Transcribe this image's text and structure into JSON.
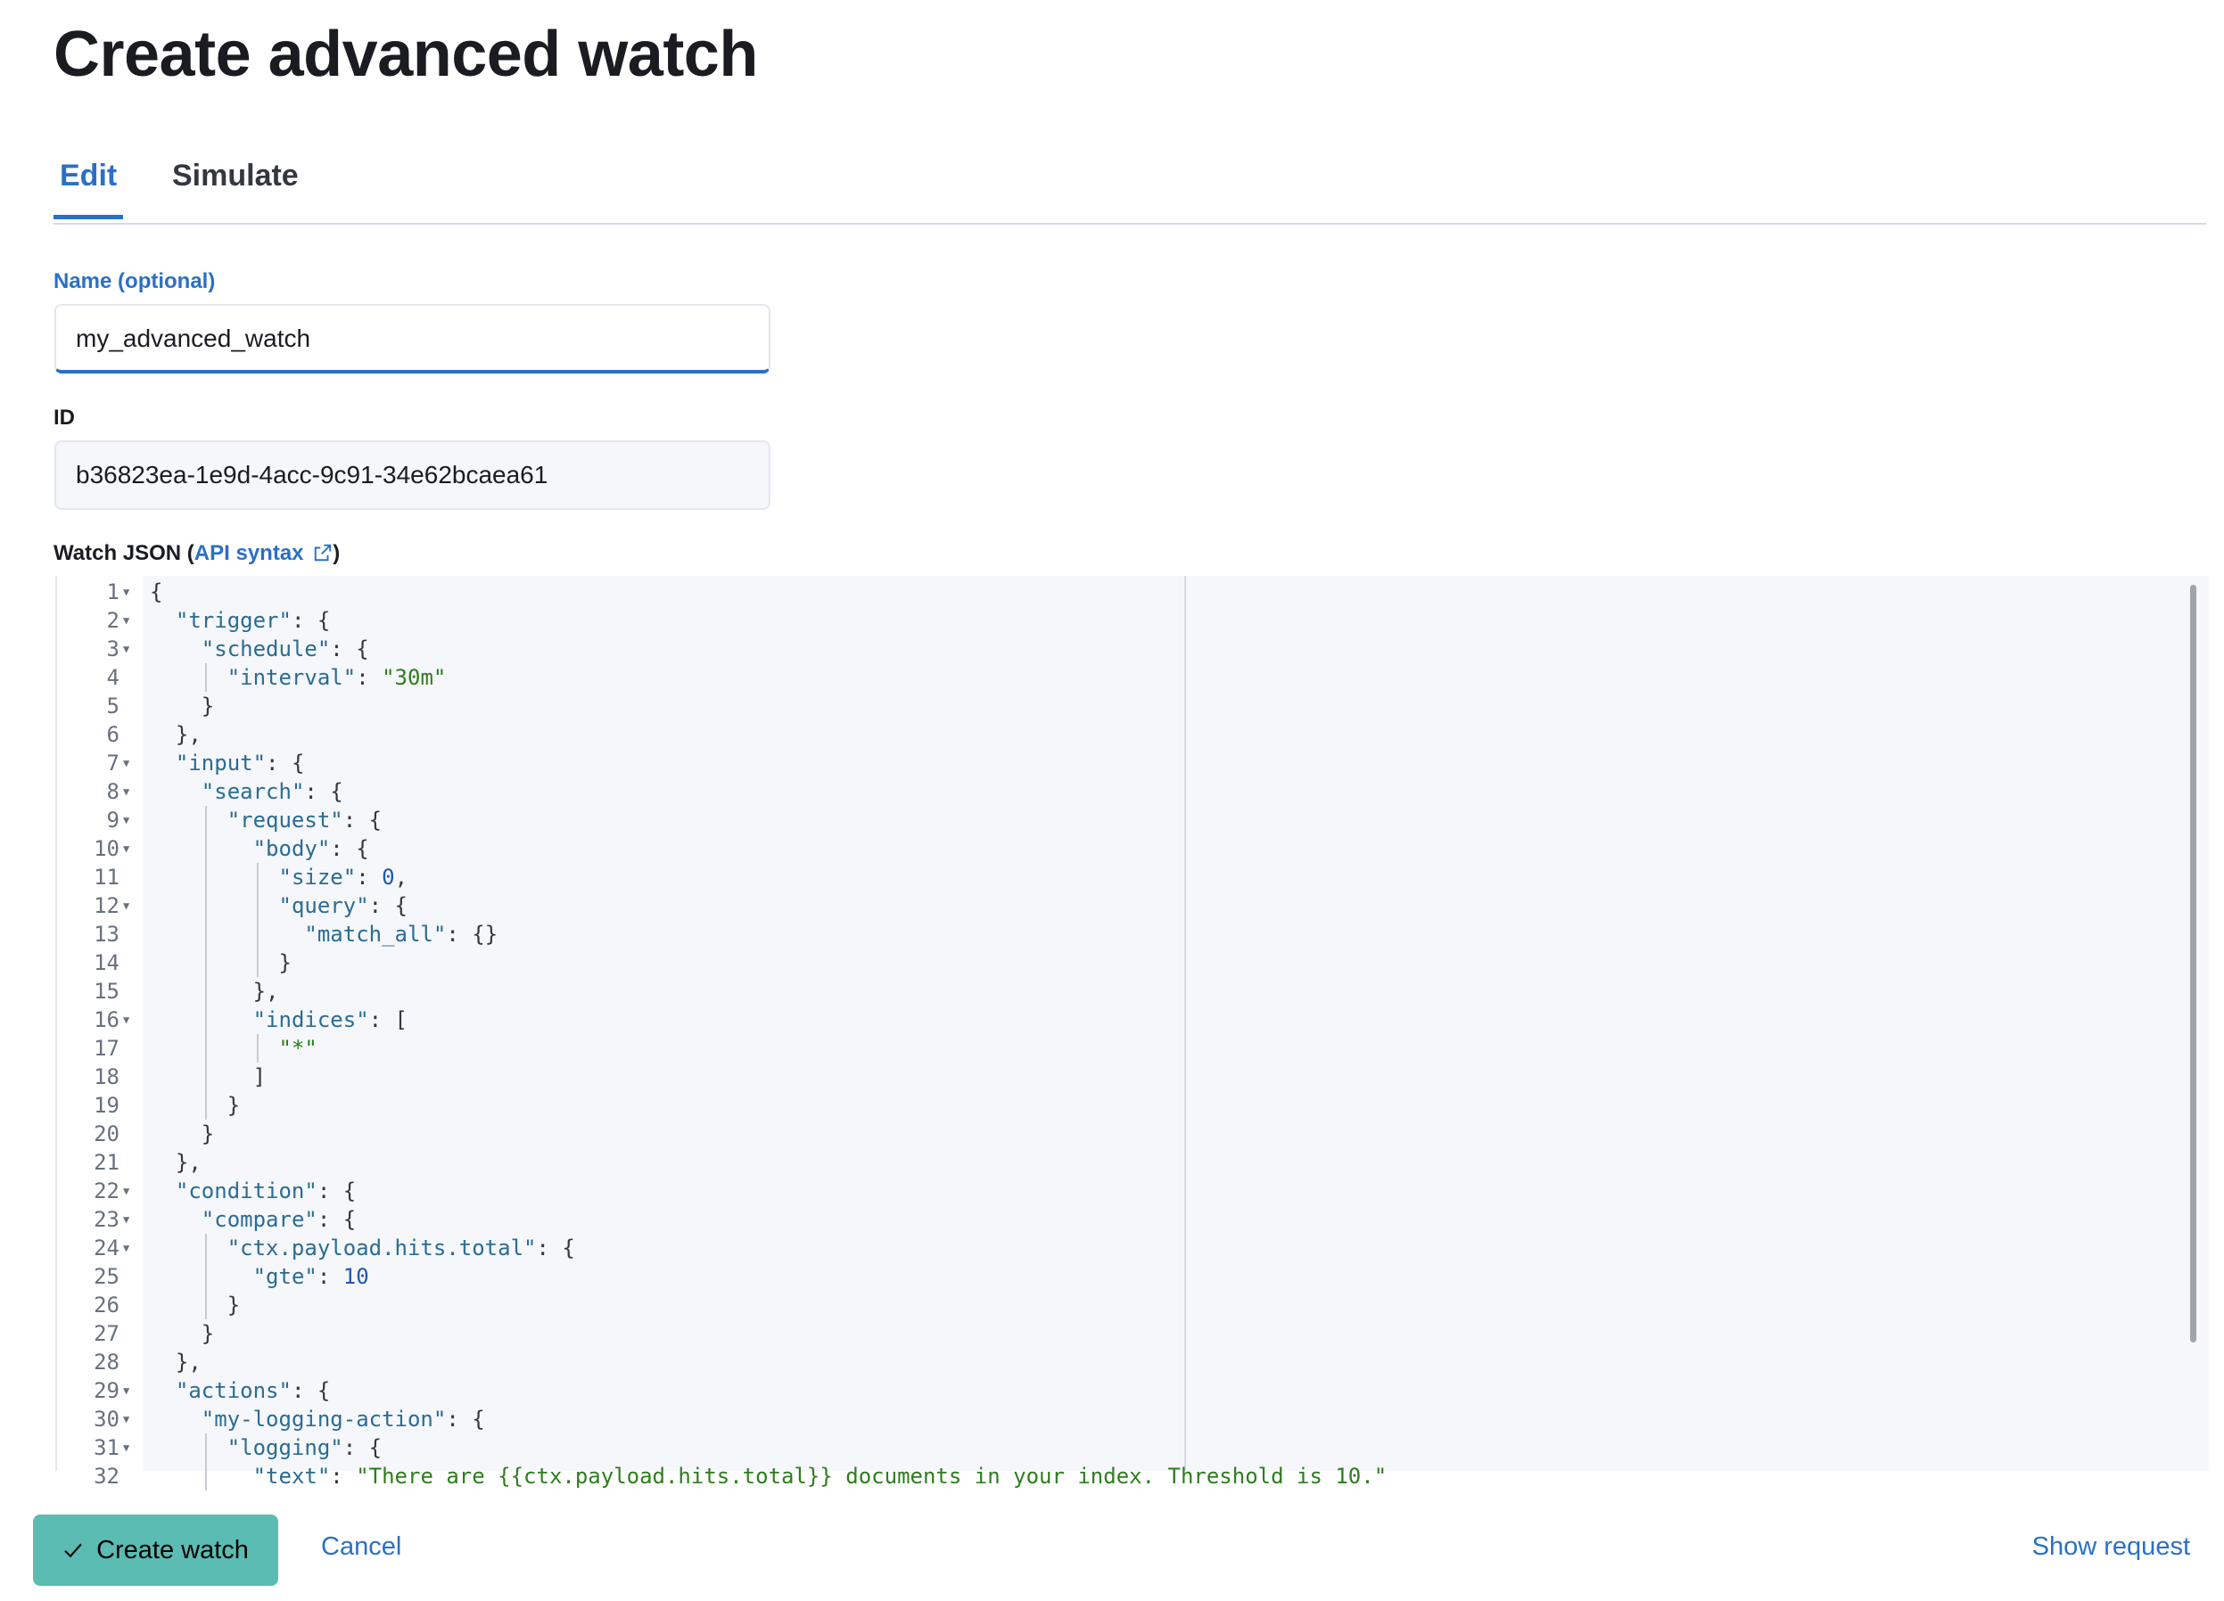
{
  "page": {
    "title": "Create advanced watch"
  },
  "tabs": [
    {
      "label": "Edit",
      "active": true
    },
    {
      "label": "Simulate",
      "active": false
    }
  ],
  "form": {
    "name_label": "Name (optional)",
    "name_value": "my_advanced_watch",
    "id_label": "ID",
    "id_value": "b36823ea-1e9d-4acc-9c91-34e62bcaea61",
    "json_label_prefix": "Watch JSON (",
    "json_label_link": "API syntax",
    "json_label_suffix": ")",
    "external_link_icon": "external-link-icon"
  },
  "editor": {
    "lines": [
      {
        "n": "1",
        "fold": true,
        "indent": 0,
        "t": [
          [
            "p",
            "{"
          ]
        ]
      },
      {
        "n": "2",
        "fold": true,
        "indent": 2,
        "t": [
          [
            "k",
            "\"trigger\""
          ],
          [
            "p",
            ": {"
          ]
        ]
      },
      {
        "n": "3",
        "fold": true,
        "indent": 4,
        "t": [
          [
            "k",
            "\"schedule\""
          ],
          [
            "p",
            ": {"
          ]
        ]
      },
      {
        "n": "4",
        "fold": false,
        "indent": 6,
        "t": [
          [
            "k",
            "\"interval\""
          ],
          [
            "p",
            ": "
          ],
          [
            "s",
            "\"30m\""
          ]
        ]
      },
      {
        "n": "5",
        "fold": false,
        "indent": 4,
        "t": [
          [
            "p",
            "}"
          ]
        ]
      },
      {
        "n": "6",
        "fold": false,
        "indent": 2,
        "t": [
          [
            "p",
            "},"
          ]
        ]
      },
      {
        "n": "7",
        "fold": true,
        "indent": 2,
        "t": [
          [
            "k",
            "\"input\""
          ],
          [
            "p",
            ": {"
          ]
        ]
      },
      {
        "n": "8",
        "fold": true,
        "indent": 4,
        "t": [
          [
            "k",
            "\"search\""
          ],
          [
            "p",
            ": {"
          ]
        ]
      },
      {
        "n": "9",
        "fold": true,
        "indent": 6,
        "t": [
          [
            "k",
            "\"request\""
          ],
          [
            "p",
            ": {"
          ]
        ]
      },
      {
        "n": "10",
        "fold": true,
        "indent": 8,
        "t": [
          [
            "k",
            "\"body\""
          ],
          [
            "p",
            ": {"
          ]
        ]
      },
      {
        "n": "11",
        "fold": false,
        "indent": 10,
        "t": [
          [
            "k",
            "\"size\""
          ],
          [
            "p",
            ": "
          ],
          [
            "nm",
            "0"
          ],
          [
            "p",
            ","
          ]
        ]
      },
      {
        "n": "12",
        "fold": true,
        "indent": 10,
        "t": [
          [
            "k",
            "\"query\""
          ],
          [
            "p",
            ": {"
          ]
        ]
      },
      {
        "n": "13",
        "fold": false,
        "indent": 12,
        "t": [
          [
            "k",
            "\"match_all\""
          ],
          [
            "p",
            ": {}"
          ]
        ]
      },
      {
        "n": "14",
        "fold": false,
        "indent": 10,
        "t": [
          [
            "p",
            "}"
          ]
        ]
      },
      {
        "n": "15",
        "fold": false,
        "indent": 8,
        "t": [
          [
            "p",
            "},"
          ]
        ]
      },
      {
        "n": "16",
        "fold": true,
        "indent": 8,
        "t": [
          [
            "k",
            "\"indices\""
          ],
          [
            "p",
            ": ["
          ]
        ]
      },
      {
        "n": "17",
        "fold": false,
        "indent": 10,
        "t": [
          [
            "s",
            "\"*\""
          ]
        ]
      },
      {
        "n": "18",
        "fold": false,
        "indent": 8,
        "t": [
          [
            "p",
            "]"
          ]
        ]
      },
      {
        "n": "19",
        "fold": false,
        "indent": 6,
        "t": [
          [
            "p",
            "}"
          ]
        ]
      },
      {
        "n": "20",
        "fold": false,
        "indent": 4,
        "t": [
          [
            "p",
            "}"
          ]
        ]
      },
      {
        "n": "21",
        "fold": false,
        "indent": 2,
        "t": [
          [
            "p",
            "},"
          ]
        ]
      },
      {
        "n": "22",
        "fold": true,
        "indent": 2,
        "t": [
          [
            "k",
            "\"condition\""
          ],
          [
            "p",
            ": {"
          ]
        ]
      },
      {
        "n": "23",
        "fold": true,
        "indent": 4,
        "t": [
          [
            "k",
            "\"compare\""
          ],
          [
            "p",
            ": {"
          ]
        ]
      },
      {
        "n": "24",
        "fold": true,
        "indent": 6,
        "t": [
          [
            "k",
            "\"ctx.payload.hits.total\""
          ],
          [
            "p",
            ": {"
          ]
        ]
      },
      {
        "n": "25",
        "fold": false,
        "indent": 8,
        "t": [
          [
            "k",
            "\"gte\""
          ],
          [
            "p",
            ": "
          ],
          [
            "nm",
            "10"
          ]
        ]
      },
      {
        "n": "26",
        "fold": false,
        "indent": 6,
        "t": [
          [
            "p",
            "}"
          ]
        ]
      },
      {
        "n": "27",
        "fold": false,
        "indent": 4,
        "t": [
          [
            "p",
            "}"
          ]
        ]
      },
      {
        "n": "28",
        "fold": false,
        "indent": 2,
        "t": [
          [
            "p",
            "},"
          ]
        ]
      },
      {
        "n": "29",
        "fold": true,
        "indent": 2,
        "t": [
          [
            "k",
            "\"actions\""
          ],
          [
            "p",
            ": {"
          ]
        ]
      },
      {
        "n": "30",
        "fold": true,
        "indent": 4,
        "t": [
          [
            "k",
            "\"my-logging-action\""
          ],
          [
            "p",
            ": {"
          ]
        ]
      },
      {
        "n": "31",
        "fold": true,
        "indent": 6,
        "t": [
          [
            "k",
            "\"logging\""
          ],
          [
            "p",
            ": {"
          ]
        ]
      },
      {
        "n": "32",
        "fold": false,
        "indent": 8,
        "t": [
          [
            "k",
            "\"text\""
          ],
          [
            "p",
            ": "
          ],
          [
            "s",
            "\"There are {{ctx.payload.hits.total}} documents in your index. Threshold is 10.\""
          ]
        ]
      }
    ]
  },
  "footer": {
    "create_label": "Create watch",
    "create_icon": "check-icon",
    "cancel_label": "Cancel",
    "show_request_label": "Show request"
  },
  "colors": {
    "accent": "#2b70c5",
    "primary_button": "#5abcb2",
    "json_key": "#2b6b94",
    "json_string": "#2e7d1e",
    "json_number": "#1f56b5"
  }
}
